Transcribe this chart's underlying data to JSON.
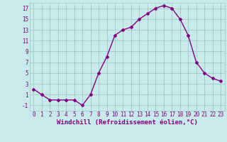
{
  "x": [
    0,
    1,
    2,
    3,
    4,
    5,
    6,
    7,
    8,
    9,
    10,
    11,
    12,
    13,
    14,
    15,
    16,
    17,
    18,
    19,
    20,
    21,
    22,
    23
  ],
  "y": [
    2.0,
    1.0,
    0.0,
    0.0,
    0.0,
    0.0,
    -1.0,
    1.0,
    5.0,
    8.0,
    12.0,
    13.0,
    13.5,
    15.0,
    16.0,
    17.0,
    17.5,
    17.0,
    15.0,
    12.0,
    7.0,
    5.0,
    4.0,
    3.5
  ],
  "line_color": "#800080",
  "marker": "D",
  "marker_size": 2,
  "line_width": 1.0,
  "bg_color": "#c8eaea",
  "grid_color": "#a0c8c8",
  "xlabel": "Windchill (Refroidissement éolien,°C)",
  "xlabel_fontsize": 6.5,
  "xlabel_color": "#800080",
  "ylabel_ticks": [
    -1,
    1,
    3,
    5,
    7,
    9,
    11,
    13,
    15,
    17
  ],
  "xtick_labels": [
    "0",
    "1",
    "2",
    "3",
    "4",
    "5",
    "6",
    "7",
    "8",
    "9",
    "10",
    "11",
    "12",
    "13",
    "14",
    "15",
    "16",
    "17",
    "18",
    "19",
    "20",
    "21",
    "22",
    "23"
  ],
  "xlim": [
    -0.5,
    23.5
  ],
  "ylim": [
    -2,
    18
  ],
  "tick_fontsize": 5.5,
  "tick_color": "#800080"
}
